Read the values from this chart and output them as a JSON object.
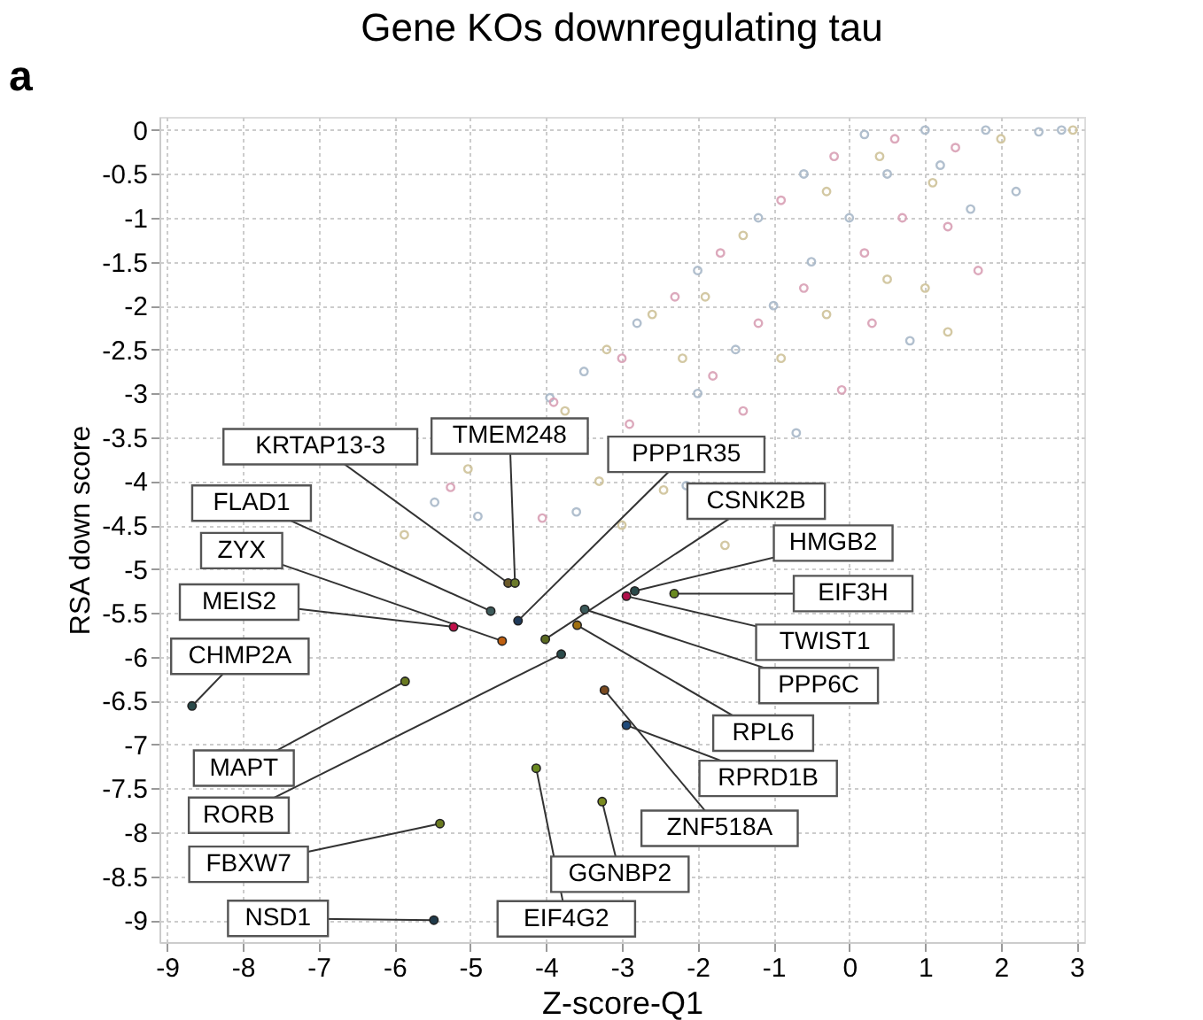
{
  "chart_data": {
    "type": "scatter",
    "title": "Gene KOs downregulating tau",
    "xlabel": "Z-score-Q1",
    "ylabel": "RSA down score",
    "annotations": [
      "a"
    ],
    "xlim": [
      -9.1,
      3.1
    ],
    "ylim": [
      -9.25,
      0.15
    ],
    "xticks": [
      -9,
      -8,
      -7,
      -6,
      -5,
      -4,
      -3,
      -2,
      -1,
      0,
      1,
      2,
      3
    ],
    "yticks": [
      -9,
      -8.5,
      -8,
      -7.5,
      -7,
      -6.5,
      -6,
      -5.5,
      -5,
      -4.5,
      -4,
      -3.5,
      -3,
      -2.5,
      -2,
      -1.5,
      -1,
      -0.5,
      0
    ],
    "grid": true,
    "marker": "circle",
    "series": [
      {
        "color": "#a9b9c9",
        "x": [
          -3.95,
          -3.5,
          -2.8,
          -2.0,
          -1.2,
          -0.6,
          0.2,
          1.0,
          1.8,
          2.5,
          2.8,
          -1.5,
          -1,
          -0.5,
          0,
          0.5,
          1.2,
          1.6,
          2.2,
          -2.15,
          -3.6,
          -5.47,
          0.8,
          -0.7,
          -2.0,
          -4.9
        ],
        "values": [
          -3.05,
          -2.75,
          -2.2,
          -1.6,
          -1.0,
          -0.5,
          -0.05,
          0,
          0,
          -0.02,
          0,
          -2.5,
          -2,
          -1.5,
          -1,
          -0.5,
          -0.4,
          -0.9,
          -0.7,
          -4.05,
          -4.35,
          -4.24,
          -2.4,
          -3.45,
          -3.0,
          -4.4
        ]
      },
      {
        "color": "#d9a0b5",
        "x": [
          -3.9,
          -3.0,
          -2.3,
          -1.7,
          -0.9,
          -0.2,
          0.6,
          1.4,
          -1.8,
          -1.2,
          -0.6,
          0.2,
          0.7,
          1.3,
          1.7,
          -0.1,
          -2.9,
          -4.05,
          -5.26,
          0.3,
          -1.4
        ],
        "values": [
          -3.1,
          -2.6,
          -1.9,
          -1.4,
          -0.8,
          -0.3,
          -0.1,
          -0.2,
          -2.8,
          -2.2,
          -1.8,
          -1.4,
          -1.0,
          -1.1,
          -1.6,
          -2.96,
          -3.35,
          -4.42,
          -4.07,
          -2.2,
          -3.2
        ]
      },
      {
        "color": "#cfc39a",
        "x": [
          -3.75,
          -3.2,
          -2.6,
          -1.9,
          -1.4,
          -0.3,
          0.4,
          1.1,
          2.0,
          2.95,
          -2.2,
          -0.9,
          -0.3,
          0.5,
          1.0,
          1.3,
          -2.45,
          -5.03,
          -5.87,
          -1.64,
          -3.3,
          -3.0
        ],
        "values": [
          -3.2,
          -2.5,
          -2.1,
          -1.9,
          -1.2,
          -0.7,
          -0.3,
          -0.6,
          -0.1,
          0,
          -2.6,
          -2.6,
          -2.1,
          -1.7,
          -1.8,
          -2.3,
          -4.1,
          -3.86,
          -4.61,
          -4.73,
          -4.0,
          -4.5
        ]
      },
      {
        "x": [
          -4.5,
          -4.41,
          -4.73,
          -4.37,
          -5.22,
          -4.58,
          -4.01,
          -3.8,
          -3.49,
          -3.59,
          -2.94,
          -2.83,
          -2.31,
          -3.23,
          -2.94,
          -8.67,
          -5.86,
          -4.13,
          -3.26,
          -5.4,
          -5.48
        ],
        "values": [
          -5.16,
          -5.16,
          -5.48,
          -5.59,
          -5.66,
          -5.82,
          -5.8,
          -5.97,
          -5.46,
          -5.64,
          -5.31,
          -5.25,
          -5.28,
          -6.38,
          -6.78,
          -6.56,
          -6.28,
          -7.27,
          -7.65,
          -7.9,
          -9.0
        ],
        "colors": [
          "#6b5a2a",
          "#6b7a2a",
          "#3d5a5a",
          "#1f3a5a",
          "#c0104a",
          "#c06010",
          "#5a6a20",
          "#2a4a4a",
          "#3a5a5a",
          "#a07010",
          "#b0104a",
          "#2a4a4a",
          "#6a8a20",
          "#7a4a20",
          "#1f4a7a",
          "#2a4a4a",
          "#6a7a20",
          "#6a8a20",
          "#7a8a20",
          "#6a7a20",
          "#1f3a4a"
        ],
        "value_labels": [
          "KRTAP13-3",
          "TMEM248",
          "FLAD1",
          "PPP1R35",
          "MEIS2",
          "ZYX",
          "CSNK2B",
          "RORB",
          "PPP6C",
          "RPL6",
          "TWIST1",
          "HMGB2",
          "EIF3H",
          "ZNF518A",
          "RPRD1B",
          "CHMP2A",
          "MAPT",
          "EIF4G2",
          "GGNBP2",
          "FBXW7",
          "NSD1"
        ]
      }
    ]
  }
}
